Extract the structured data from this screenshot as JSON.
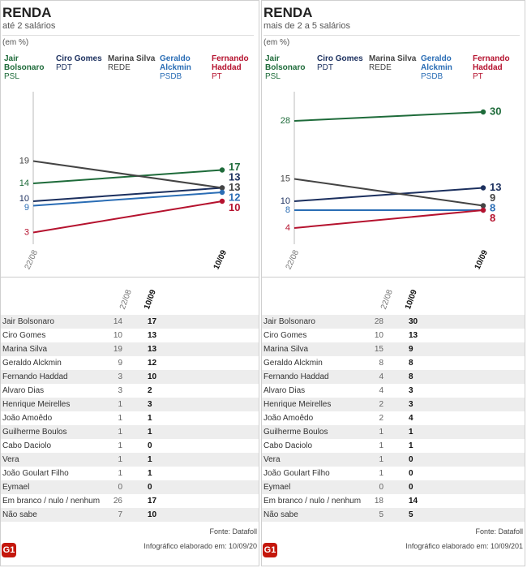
{
  "chart_data": [
    {
      "type": "line",
      "title": "RENDA",
      "subtitle": "até 2 salários",
      "unit": "(em %)",
      "categories": [
        "22/08",
        "10/09"
      ],
      "series": [
        {
          "name": "Jair Bolsonaro",
          "party": "PSL",
          "color": "#1e6b3a",
          "values": [
            14,
            17
          ]
        },
        {
          "name": "Ciro Gomes",
          "party": "PDT",
          "color": "#1b2f5e",
          "values": [
            10,
            13
          ]
        },
        {
          "name": "Marina Silva",
          "party": "REDE",
          "color": "#444444",
          "values": [
            19,
            13
          ]
        },
        {
          "name": "Geraldo Alckmin",
          "party": "PSDB",
          "color": "#2a6db5",
          "values": [
            9,
            12
          ]
        },
        {
          "name": "Fernando Haddad",
          "party": "PT",
          "color": "#b5122e",
          "values": [
            3,
            10
          ]
        }
      ],
      "table": {
        "rows": [
          [
            "Jair Bolsonaro",
            14,
            17
          ],
          [
            "Ciro Gomes",
            10,
            13
          ],
          [
            "Marina Silva",
            19,
            13
          ],
          [
            "Geraldo Alckmin",
            9,
            12
          ],
          [
            "Fernando Haddad",
            3,
            10
          ],
          [
            "Alvaro Dias",
            3,
            2
          ],
          [
            "Henrique Meirelles",
            1,
            3
          ],
          [
            "João Amoêdo",
            1,
            1
          ],
          [
            "Guilherme Boulos",
            1,
            1
          ],
          [
            "Cabo Daciolo",
            1,
            0
          ],
          [
            "Vera",
            1,
            1
          ],
          [
            "João Goulart Filho",
            1,
            1
          ],
          [
            "Eymael",
            0,
            0
          ],
          [
            "Em branco / nulo / nenhum",
            26,
            17
          ],
          [
            "Não sabe",
            7,
            10
          ]
        ]
      },
      "source": "Fonte: Datafoll",
      "credit": "Infográfico elaborado em: 10/09/20",
      "logo": "G1"
    },
    {
      "type": "line",
      "title": "RENDA",
      "subtitle": "mais de 2 a 5 salários",
      "unit": "(em %)",
      "categories": [
        "22/08",
        "10/09"
      ],
      "series": [
        {
          "name": "Jair Bolsonaro",
          "party": "PSL",
          "color": "#1e6b3a",
          "values": [
            28,
            30
          ]
        },
        {
          "name": "Ciro Gomes",
          "party": "PDT",
          "color": "#1b2f5e",
          "values": [
            10,
            13
          ]
        },
        {
          "name": "Marina Silva",
          "party": "REDE",
          "color": "#444444",
          "values": [
            15,
            9
          ]
        },
        {
          "name": "Geraldo Alckmin",
          "party": "PSDB",
          "color": "#2a6db5",
          "values": [
            8,
            8
          ]
        },
        {
          "name": "Fernando Haddad",
          "party": "PT",
          "color": "#b5122e",
          "values": [
            4,
            8
          ]
        }
      ],
      "table": {
        "rows": [
          [
            "Jair Bolsonaro",
            28,
            30
          ],
          [
            "Ciro Gomes",
            10,
            13
          ],
          [
            "Marina Silva",
            15,
            9
          ],
          [
            "Geraldo Alckmin",
            8,
            8
          ],
          [
            "Fernando Haddad",
            4,
            8
          ],
          [
            "Alvaro Dias",
            4,
            3
          ],
          [
            "Henrique Meirelles",
            2,
            3
          ],
          [
            "João Amoêdo",
            2,
            4
          ],
          [
            "Guilherme Boulos",
            1,
            1
          ],
          [
            "Cabo Daciolo",
            1,
            1
          ],
          [
            "Vera",
            1,
            0
          ],
          [
            "João Goulart Filho",
            1,
            0
          ],
          [
            "Eymael",
            0,
            0
          ],
          [
            "Em branco / nulo / nenhum",
            18,
            14
          ],
          [
            "Não sabe",
            5,
            5
          ]
        ]
      },
      "source": "Fonte: Datafoll",
      "credit": "Infográfico elaborado em: 10/09/201",
      "logo": "G1"
    }
  ]
}
